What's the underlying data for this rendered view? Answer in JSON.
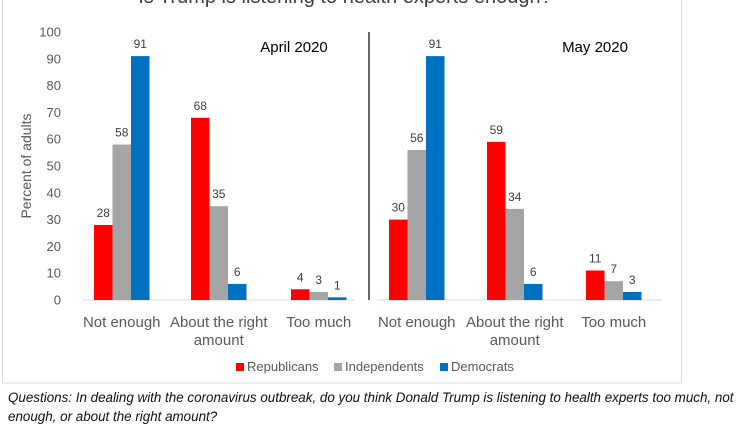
{
  "chart_data": {
    "type": "bar",
    "title": "Is Trump is listening to health experts enough?",
    "ylabel": "Percent of adults",
    "ylim": [
      0,
      100
    ],
    "yticks": [
      0,
      10,
      20,
      30,
      40,
      50,
      60,
      70,
      80,
      90,
      100
    ],
    "grid": false,
    "legend_position": "bottom",
    "series_colors": [
      "#ff0000",
      "#a5a5a5",
      "#0070c0"
    ],
    "series_names": [
      "Republicans",
      "Independents",
      "Democrats"
    ],
    "panels": [
      {
        "label": "April 2020",
        "categories": [
          "Not enough",
          "About the right amount",
          "Too much"
        ],
        "series": [
          {
            "name": "Republicans",
            "values": [
              28,
              68,
              4
            ]
          },
          {
            "name": "Independents",
            "values": [
              58,
              35,
              3
            ]
          },
          {
            "name": "Democrats",
            "values": [
              91,
              6,
              1
            ]
          }
        ]
      },
      {
        "label": "May 2020",
        "categories": [
          "Not enough",
          "About the right amount",
          "Too much"
        ],
        "series": [
          {
            "name": "Republicans",
            "values": [
              30,
              59,
              11
            ]
          },
          {
            "name": "Independents",
            "values": [
              56,
              34,
              7
            ]
          },
          {
            "name": "Democrats",
            "values": [
              91,
              6,
              3
            ]
          }
        ]
      }
    ]
  },
  "caption": "Questions: In dealing with the coronavirus outbreak, do you think Donald Trump is listening to health experts too much, not enough, or about the right amount?"
}
